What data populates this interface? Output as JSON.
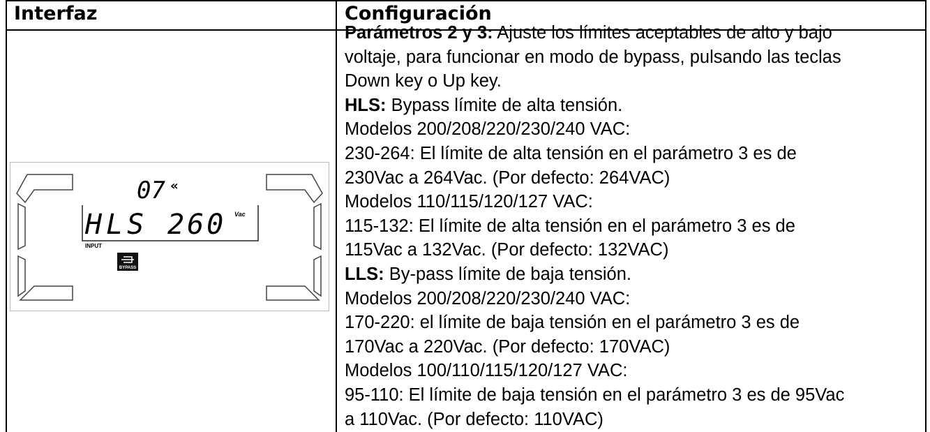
{
  "header": {
    "col1": "Interfaz",
    "col2": "Configuración"
  },
  "lcd": {
    "param": "07",
    "code": "HLS",
    "value": "260",
    "unit": "Vac",
    "input": "INPUT",
    "bypass": "BYPASS"
  },
  "lines": [
    {
      "bold": "Parámetros 2 y 3:",
      "text": " Ajuste los límites aceptables de alto y bajo"
    },
    {
      "text": "voltaje, para funcionar en modo de bypass, pulsando las teclas"
    },
    {
      "text": "Down key o Up key."
    },
    {
      "bold": "HLS:",
      "text": " Bypass límite de alta tensión."
    },
    {
      "text": "Modelos 200/208/220/230/240 VAC:"
    },
    {
      "text": "230-264: El límite de alta tensión en el parámetro 3 es de"
    },
    {
      "text": "230Vac a 264Vac. (Por defecto: 264VAC)"
    },
    {
      "text": "Modelos 110/115/120/127 VAC:"
    },
    {
      "text": "115-132: El límite de alta tensión en el parámetro 3 es de"
    },
    {
      "text": "115Vac a 132Vac. (Por defecto: 132VAC)"
    },
    {
      "bold": "LLS:",
      "text": " By-pass límite de baja tensión."
    },
    {
      "text": "Modelos 200/208/220/230/240 VAC:"
    },
    {
      "text": "170-220: el límite de baja tensión en el parámetro 3 es de"
    },
    {
      "text": "170Vac a 220Vac. (Por defecto: 170VAC)"
    },
    {
      "text": "Modelos 100/110/115/120/127 VAC:"
    },
    {
      "text": "95-110: El límite de baja tensión en el parámetro 3 es de 95Vac"
    },
    {
      "text": "a 110Vac. (Por defecto: 110VAC)"
    }
  ]
}
